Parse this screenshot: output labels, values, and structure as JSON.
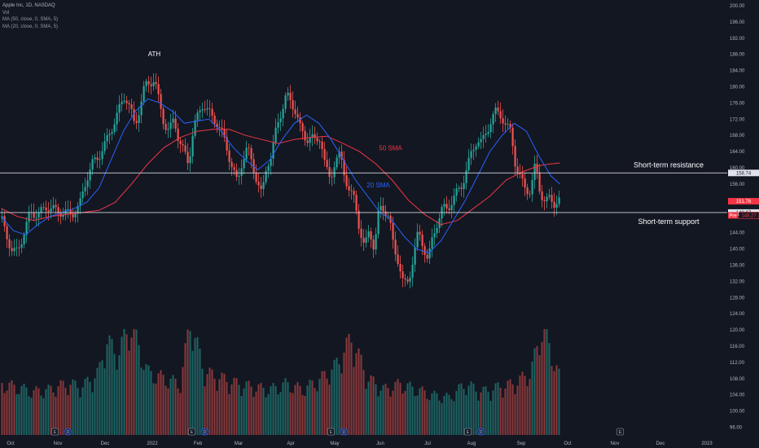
{
  "legend": {
    "symbol_line": "Apple Inc, 1D, NASDAQ",
    "vol_label": "Vol",
    "ma50_label": "MA (50, close, 0, SMA, 5)",
    "ma20_label": "MA (20, close, 0, SMA, 5)"
  },
  "colors": {
    "background": "#131722",
    "up": "#26a69a",
    "down": "#ef5350",
    "sma20": "#2962ff",
    "sma50": "#f23645",
    "hline": "#d1d4dc",
    "text": "#d1d4dc"
  },
  "chart_data": {
    "type": "candlestick",
    "symbol": "Apple Inc",
    "interval": "1D",
    "exchange": "NASDAQ",
    "price_axis_ticks": [
      96,
      100,
      104,
      108,
      112,
      116,
      120,
      124,
      128,
      132,
      136,
      140,
      144,
      148,
      152,
      156,
      160,
      164,
      168,
      172,
      176,
      180,
      184,
      188,
      192,
      196,
      200
    ],
    "price_axis_tick_labels": [
      "96.00",
      "100.00",
      "104.00",
      "108.00",
      "112.00",
      "116.00",
      "120.00",
      "124.00",
      "128.00",
      "132.00",
      "136.00",
      "140.00",
      "144.00",
      "148.00",
      "152.00",
      "156.00",
      "160.00",
      "164.00",
      "168.00",
      "172.00",
      "176.00",
      "180.00",
      "184.00",
      "188.00",
      "192.00",
      "196.00",
      "200.00"
    ],
    "ylim": [
      94.5,
      201
    ],
    "time_axis_labels": [
      "Oct",
      "Nov",
      "Dec",
      "2022",
      "Feb",
      "Mar",
      "Apr",
      "May",
      "Jun",
      "Jul",
      "Aug",
      "Sep",
      "Oct",
      "Nov",
      "Dec",
      "2023"
    ],
    "price_path": [
      [
        0,
        147.5
      ],
      [
        8,
        142.5
      ],
      [
        14,
        139
      ],
      [
        20,
        139.5
      ],
      [
        28,
        144
      ],
      [
        36,
        149
      ],
      [
        46,
        148.5
      ],
      [
        56,
        150.5
      ],
      [
        66,
        149.5
      ],
      [
        76,
        149
      ],
      [
        86,
        148.5
      ],
      [
        96,
        150.5
      ],
      [
        104,
        157
      ],
      [
        112,
        161
      ],
      [
        120,
        163
      ],
      [
        128,
        166
      ],
      [
        136,
        170
      ],
      [
        144,
        174
      ],
      [
        152,
        178
      ],
      [
        158,
        175
      ],
      [
        164,
        170
      ],
      [
        170,
        175
      ],
      [
        176,
        180
      ],
      [
        182,
        181
      ],
      [
        188,
        182
      ],
      [
        194,
        176
      ],
      [
        200,
        171
      ],
      [
        206,
        169
      ],
      [
        212,
        172
      ],
      [
        218,
        167
      ],
      [
        224,
        164
      ],
      [
        230,
        161
      ],
      [
        236,
        170
      ],
      [
        242,
        173
      ],
      [
        248,
        176
      ],
      [
        254,
        174
      ],
      [
        260,
        172
      ],
      [
        266,
        171
      ],
      [
        272,
        168
      ],
      [
        278,
        164
      ],
      [
        284,
        160
      ],
      [
        290,
        156
      ],
      [
        296,
        162
      ],
      [
        302,
        165
      ],
      [
        308,
        161
      ],
      [
        314,
        157
      ],
      [
        320,
        153
      ],
      [
        326,
        161
      ],
      [
        332,
        163
      ],
      [
        338,
        170
      ],
      [
        344,
        174
      ],
      [
        350,
        178
      ],
      [
        356,
        176
      ],
      [
        362,
        174
      ],
      [
        368,
        169
      ],
      [
        374,
        167
      ],
      [
        380,
        168
      ],
      [
        386,
        166
      ],
      [
        392,
        168
      ],
      [
        398,
        160
      ],
      [
        404,
        157
      ],
      [
        410,
        162
      ],
      [
        416,
        163
      ],
      [
        422,
        158
      ],
      [
        428,
        154
      ],
      [
        434,
        152
      ],
      [
        440,
        145
      ],
      [
        446,
        140
      ],
      [
        452,
        145
      ],
      [
        458,
        140
      ],
      [
        464,
        150
      ],
      [
        470,
        150
      ],
      [
        476,
        148
      ],
      [
        482,
        140
      ],
      [
        488,
        137
      ],
      [
        494,
        131
      ],
      [
        500,
        132
      ],
      [
        506,
        138
      ],
      [
        512,
        144
      ],
      [
        518,
        141
      ],
      [
        524,
        137
      ],
      [
        530,
        143
      ],
      [
        536,
        147
      ],
      [
        542,
        150
      ],
      [
        548,
        150
      ],
      [
        554,
        152
      ],
      [
        560,
        154
      ],
      [
        566,
        156
      ],
      [
        572,
        160
      ],
      [
        578,
        164
      ],
      [
        584,
        167
      ],
      [
        590,
        166
      ],
      [
        596,
        169
      ],
      [
        602,
        172
      ],
      [
        608,
        174
      ],
      [
        614,
        173
      ],
      [
        620,
        170
      ],
      [
        626,
        169
      ],
      [
        632,
        160
      ],
      [
        638,
        157
      ],
      [
        644,
        155
      ],
      [
        650,
        154
      ],
      [
        656,
        161
      ],
      [
        662,
        154
      ],
      [
        668,
        151
      ],
      [
        674,
        153
      ],
      [
        680,
        151
      ],
      [
        686,
        151.8
      ]
    ],
    "sma20": [
      [
        0,
        148
      ],
      [
        15,
        144.5
      ],
      [
        30,
        143.5
      ],
      [
        45,
        146
      ],
      [
        60,
        148
      ],
      [
        75,
        149
      ],
      [
        90,
        150
      ],
      [
        105,
        151.5
      ],
      [
        120,
        155
      ],
      [
        135,
        162
      ],
      [
        150,
        169
      ],
      [
        165,
        174
      ],
      [
        180,
        177
      ],
      [
        195,
        176
      ],
      [
        210,
        174
      ],
      [
        225,
        171
      ],
      [
        240,
        171.5
      ],
      [
        255,
        172
      ],
      [
        270,
        169
      ],
      [
        285,
        165
      ],
      [
        300,
        162
      ],
      [
        315,
        159.5
      ],
      [
        330,
        162
      ],
      [
        345,
        167
      ],
      [
        360,
        171
      ],
      [
        375,
        173
      ],
      [
        390,
        171
      ],
      [
        405,
        167
      ],
      [
        420,
        162
      ],
      [
        435,
        157
      ],
      [
        450,
        153
      ],
      [
        465,
        149
      ],
      [
        480,
        147
      ],
      [
        495,
        143
      ],
      [
        510,
        140
      ],
      [
        525,
        139
      ],
      [
        540,
        142
      ],
      [
        555,
        147
      ],
      [
        570,
        152
      ],
      [
        585,
        158
      ],
      [
        600,
        164
      ],
      [
        615,
        168
      ],
      [
        630,
        171
      ],
      [
        645,
        169
      ],
      [
        660,
        163
      ],
      [
        675,
        158
      ],
      [
        686,
        156
      ]
    ],
    "sma50": [
      [
        0,
        150
      ],
      [
        20,
        148
      ],
      [
        40,
        147
      ],
      [
        60,
        148
      ],
      [
        80,
        148.5
      ],
      [
        100,
        149
      ],
      [
        120,
        149.5
      ],
      [
        140,
        151.5
      ],
      [
        160,
        156
      ],
      [
        180,
        161
      ],
      [
        200,
        165
      ],
      [
        220,
        167.5
      ],
      [
        240,
        169
      ],
      [
        260,
        169.5
      ],
      [
        280,
        169.5
      ],
      [
        300,
        168
      ],
      [
        320,
        167
      ],
      [
        340,
        166
      ],
      [
        360,
        167
      ],
      [
        380,
        167.5
      ],
      [
        400,
        167.8
      ],
      [
        420,
        166
      ],
      [
        440,
        164
      ],
      [
        460,
        161
      ],
      [
        480,
        157
      ],
      [
        500,
        152
      ],
      [
        520,
        148.5
      ],
      [
        540,
        146
      ],
      [
        560,
        147
      ],
      [
        580,
        150
      ],
      [
        600,
        153
      ],
      [
        620,
        157
      ],
      [
        640,
        159
      ],
      [
        660,
        160.5
      ],
      [
        675,
        161
      ],
      [
        686,
        161.2
      ]
    ],
    "volume_profile": [
      [
        0,
        0.45
      ],
      [
        20,
        0.42
      ],
      [
        40,
        0.38
      ],
      [
        60,
        0.4
      ],
      [
        80,
        0.45
      ],
      [
        100,
        0.43
      ],
      [
        120,
        0.55
      ],
      [
        130,
        0.85
      ],
      [
        140,
        0.7
      ],
      [
        160,
        0.95
      ],
      [
        180,
        0.55
      ],
      [
        200,
        0.5
      ],
      [
        220,
        0.45
      ],
      [
        232,
        1.0
      ],
      [
        250,
        0.55
      ],
      [
        270,
        0.5
      ],
      [
        290,
        0.45
      ],
      [
        310,
        0.42
      ],
      [
        330,
        0.4
      ],
      [
        350,
        0.45
      ],
      [
        370,
        0.4
      ],
      [
        390,
        0.48
      ],
      [
        410,
        0.6
      ],
      [
        430,
        0.85
      ],
      [
        450,
        0.5
      ],
      [
        470,
        0.4
      ],
      [
        490,
        0.45
      ],
      [
        510,
        0.4
      ],
      [
        530,
        0.35
      ],
      [
        550,
        0.33
      ],
      [
        570,
        0.45
      ],
      [
        590,
        0.38
      ],
      [
        610,
        0.42
      ],
      [
        630,
        0.45
      ],
      [
        650,
        0.55
      ],
      [
        665,
        0.95
      ],
      [
        686,
        0.5
      ]
    ],
    "volume_axis_max": 0.34,
    "horizontal_levels": [
      {
        "price": 158.74,
        "label": "158.74",
        "annotation": "Short-term resistance"
      },
      {
        "price": 148.97,
        "label": "148.97",
        "annotation": "Short-term support"
      }
    ],
    "last_price": {
      "value": 151.76,
      "label": "151.76"
    },
    "pre_market": {
      "value": 148.27,
      "label": "148.27",
      "tag": "Pre"
    },
    "annotations": [
      {
        "text": "ATH",
        "x_index": 188,
        "price": 187.5,
        "color": "#ffffff"
      },
      {
        "text": "50 SMA",
        "x_index": 478,
        "price": 164.3,
        "color": "#f23645"
      },
      {
        "text": "20 SMA",
        "x_index": 463,
        "price": 155.2,
        "color": "#2962ff"
      }
    ],
    "event_markers": [
      {
        "x_index": 66,
        "letter": "E"
      },
      {
        "x_index": 82,
        "letter": "D"
      },
      {
        "x_index": 234,
        "letter": "E"
      },
      {
        "x_index": 250,
        "letter": "D"
      },
      {
        "x_index": 405,
        "letter": "E"
      },
      {
        "x_index": 421,
        "letter": "D"
      },
      {
        "x_index": 573,
        "letter": "E"
      },
      {
        "x_index": 589,
        "letter": "D"
      },
      {
        "x_index": 760,
        "letter": "E"
      }
    ]
  }
}
